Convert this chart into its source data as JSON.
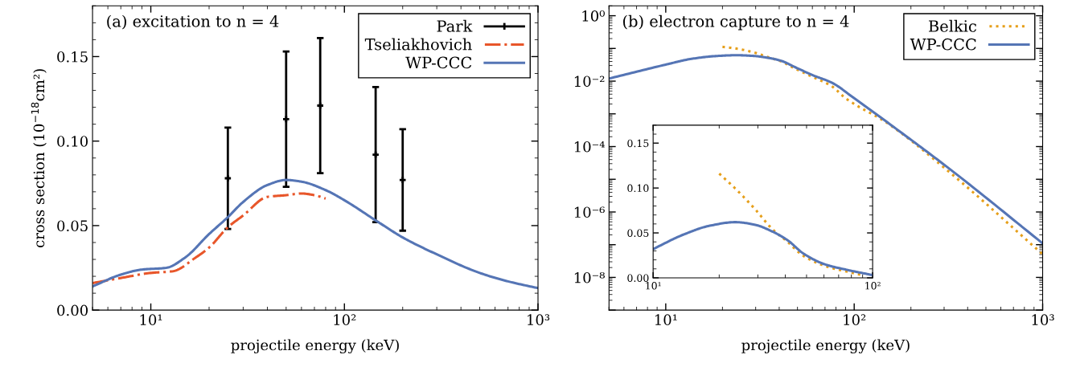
{
  "chart_data": [
    {
      "type": "line",
      "annotations": [
        "(a) excitation to n = 4"
      ],
      "xlabel": "projectile energy (keV)",
      "ylabel": "cross section (10$^{−18}$cm²)",
      "log": "x",
      "xlim": [
        5,
        1000
      ],
      "xticks": [
        {
          "value": 10,
          "label": "10¹"
        },
        {
          "value": 100,
          "label": "10²"
        },
        {
          "value": 1000,
          "label": "10³"
        }
      ],
      "ylim": [
        0,
        0.18
      ],
      "yticks": [
        {
          "value": 0,
          "label": "0.00"
        },
        {
          "value": 0.05,
          "label": "0.05"
        },
        {
          "value": 0.1,
          "label": "0.10"
        },
        {
          "value": 0.15,
          "label": "0.15"
        }
      ],
      "legend": "top right",
      "grid": false,
      "series": [
        {
          "name": "Park",
          "type": "scatter",
          "color": "#000000",
          "x": [
            25,
            50,
            75,
            145,
            200
          ],
          "values": [
            0.078,
            0.113,
            0.121,
            0.092,
            0.077
          ],
          "errors": [
            0.03,
            0.04,
            0.04,
            0.04,
            0.03
          ]
        },
        {
          "name": "Tseliakhovich",
          "line_style": "dashdot",
          "color": "#e8562a",
          "x": [
            5,
            7,
            10,
            13,
            17,
            20,
            25,
            30,
            40,
            50,
            60,
            70,
            80
          ],
          "values": [
            0.016,
            0.019,
            0.022,
            0.023,
            0.031,
            0.037,
            0.049,
            0.056,
            0.067,
            0.068,
            0.069,
            0.068,
            0.066
          ]
        },
        {
          "name": "WP-CCC",
          "line_style": "solid",
          "color": "#5575b5",
          "x": [
            5,
            7,
            9,
            12,
            15,
            20,
            25,
            30,
            40,
            50,
            60,
            80,
            100,
            150,
            200,
            300,
            500,
            700,
            1000
          ],
          "values": [
            0.014,
            0.021,
            0.024,
            0.025,
            0.031,
            0.045,
            0.055,
            0.064,
            0.074,
            0.077,
            0.076,
            0.071,
            0.065,
            0.052,
            0.043,
            0.033,
            0.022,
            0.017,
            0.013
          ]
        }
      ]
    },
    {
      "type": "line",
      "annotations": [
        "(b) electron capture to n = 4"
      ],
      "xlabel": "projectile energy (keV)",
      "log": "xy",
      "xlim": [
        5,
        1000
      ],
      "xticks": [
        {
          "value": 10,
          "label": "10¹"
        },
        {
          "value": 100,
          "label": "10²"
        },
        {
          "value": 1000,
          "label": "10³"
        }
      ],
      "ylim": [
        1e-09,
        2
      ],
      "yticks": [
        {
          "value": 1,
          "label": "10⁰"
        },
        {
          "value": 0.1,
          "label": null
        },
        {
          "value": 0.01,
          "label": "10⁻²"
        },
        {
          "value": 0.001,
          "label": null
        },
        {
          "value": 0.0001,
          "label": "10⁻⁴"
        },
        {
          "value": 1e-05,
          "label": null
        },
        {
          "value": 1e-06,
          "label": "10⁻⁶"
        },
        {
          "value": 1e-07,
          "label": null
        },
        {
          "value": 1e-08,
          "label": "10⁻⁸"
        },
        {
          "value": 1e-09,
          "label": null
        }
      ],
      "legend": "top right",
      "grid": false,
      "series": [
        {
          "name": "Belkic",
          "line_style": "dotted",
          "color": "#e69f1a",
          "x": [
            20,
            24,
            29,
            35,
            41,
            48,
            61,
            76,
            90,
            150,
            320,
            1000
          ],
          "values": [
            0.112,
            0.098,
            0.077,
            0.054,
            0.04,
            0.025,
            0.013,
            0.007,
            0.003,
            0.00052,
            1.66e-05,
            5.1e-08
          ]
        },
        {
          "name": "WP-CCC",
          "line_style": "solid",
          "color": "#5575b5",
          "x": [
            5,
            10,
            13.7,
            18.1,
            23.7,
            29.2,
            34.6,
            40.9,
            48.4,
            60.6,
            76,
            100,
            150,
            320,
            1000
          ],
          "values": [
            0.012,
            0.032,
            0.048,
            0.058,
            0.062,
            0.059,
            0.052,
            0.042,
            0.027,
            0.015,
            0.009,
            0.003,
            0.00055,
            2.1e-05,
            1.1e-07
          ]
        }
      ]
    },
    {
      "type": "line",
      "log": "x",
      "xlim": [
        10,
        100
      ],
      "xticks": [
        {
          "value": 10,
          "label": "10¹"
        },
        {
          "value": 100,
          "label": "10²"
        }
      ],
      "ylim": [
        0,
        0.17
      ],
      "yticks": [
        {
          "value": 0,
          "label": "0.00"
        },
        {
          "value": 0.05,
          "label": "0.05"
        },
        {
          "value": 0.1,
          "label": "0.10"
        },
        {
          "value": 0.15,
          "label": "0.15"
        }
      ],
      "grid": false,
      "series": [
        {
          "line_style": "dotted",
          "color": "#e69f1a",
          "x": [
            20,
            24,
            29,
            35,
            41,
            48,
            61,
            76,
            90
          ],
          "values": [
            0.116,
            0.098,
            0.077,
            0.054,
            0.04,
            0.025,
            0.013,
            0.007,
            0.003
          ]
        },
        {
          "line_style": "solid",
          "color": "#5575b5",
          "x": [
            10,
            13.7,
            18.1,
            23.7,
            29.2,
            34.6,
            40.9,
            48.4,
            60.6,
            76,
            100
          ],
          "values": [
            0.032,
            0.048,
            0.058,
            0.062,
            0.059,
            0.052,
            0.042,
            0.027,
            0.015,
            0.009,
            0.003
          ]
        }
      ]
    }
  ]
}
